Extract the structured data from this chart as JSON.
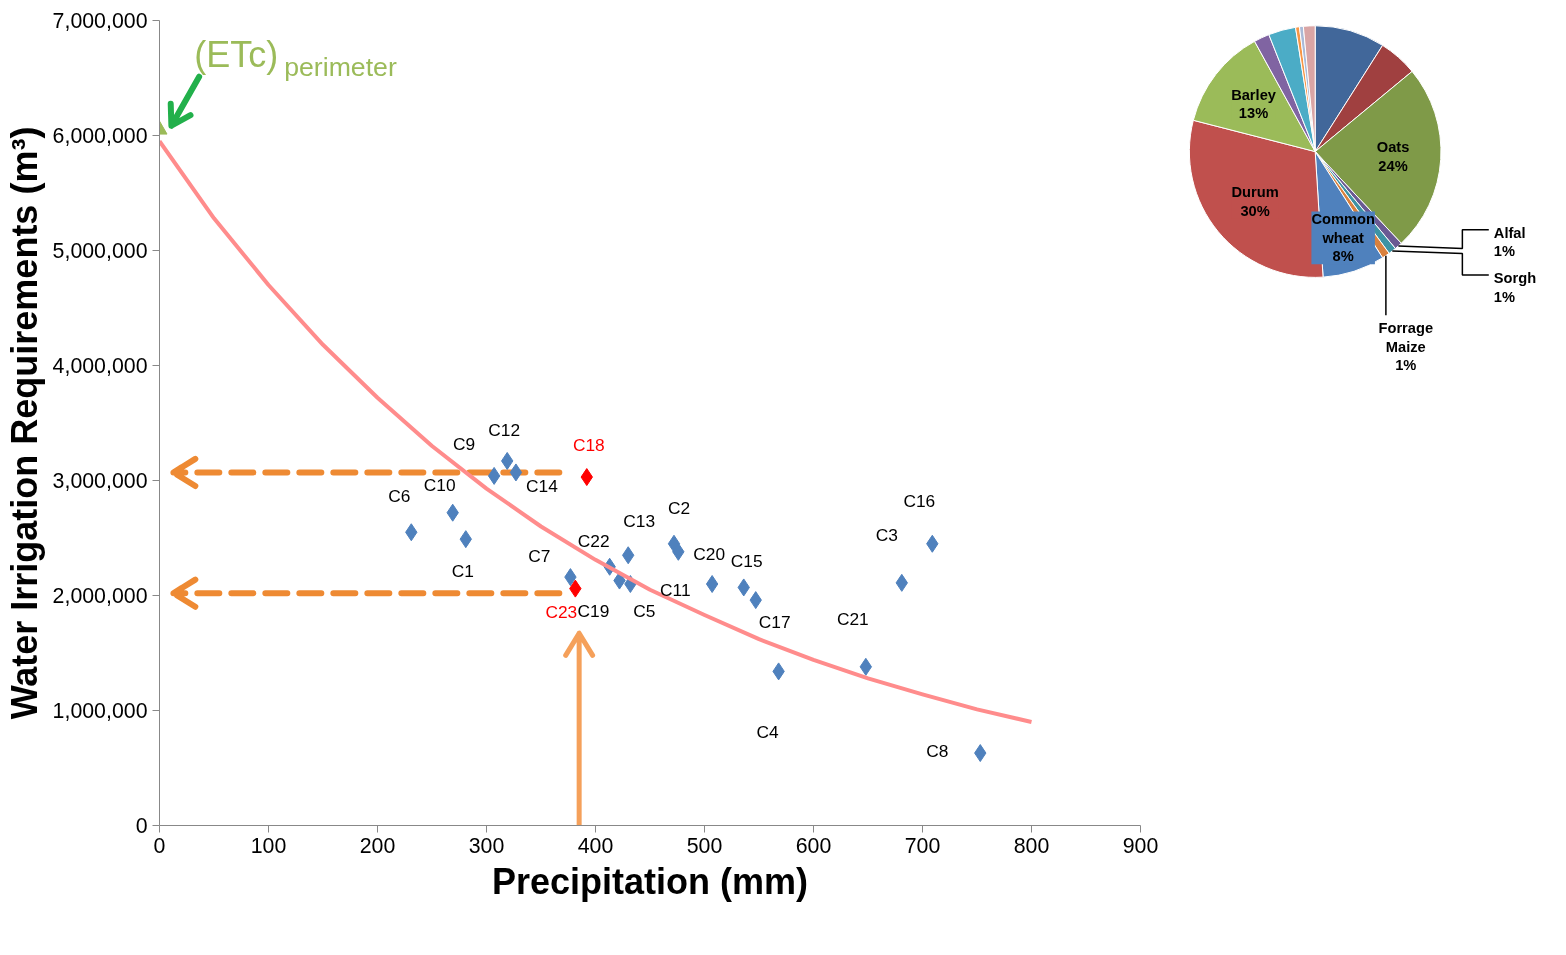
{
  "chart_data": [
    {
      "type": "scatter",
      "xlabel": "Precipitation (mm)",
      "ylabel": "Water Irrigation Requirements (m³)",
      "xlim": [
        0,
        900
      ],
      "xticks": [
        0,
        100,
        200,
        300,
        400,
        500,
        600,
        700,
        800,
        900
      ],
      "ylim": [
        0,
        7000000
      ],
      "yticks": [
        {
          "value": 0,
          "label": "0"
        },
        {
          "value": 1000000,
          "label": "1,000,000"
        },
        {
          "value": 2000000,
          "label": "2,000,000"
        },
        {
          "value": 3000000,
          "label": "3,000,000"
        },
        {
          "value": 4000000,
          "label": "4,000,000"
        },
        {
          "value": 5000000,
          "label": "5,000,000"
        },
        {
          "value": 6000000,
          "label": "6,000,000"
        },
        {
          "value": 7000000,
          "label": "7,000,000"
        }
      ],
      "grid": false,
      "marker": "diamond",
      "ref_lines": [
        {
          "axis": "y",
          "value": 3070000,
          "color": "#ee8a33",
          "line_style": "dashed"
        },
        {
          "axis": "y",
          "value": 2020000,
          "color": "#ee8a33",
          "line_style": "dashed"
        },
        {
          "axis": "x",
          "value": 385,
          "color": "#f5a05a",
          "line_style": "solid"
        }
      ],
      "series": [
        {
          "type": "scatter",
          "color": "#4f81bd",
          "x": [
            231,
            269,
            281,
            307,
            319,
            327,
            377,
            413,
            422,
            430,
            432,
            472,
            476,
            507,
            536,
            547,
            568,
            648,
            681,
            709,
            753
          ],
          "values": [
            2550000,
            2720000,
            2490000,
            3040000,
            3170000,
            3070000,
            2160000,
            2250000,
            2130000,
            2350000,
            2100000,
            2450000,
            2380000,
            2100000,
            2070000,
            1960000,
            1340000,
            1380000,
            2110000,
            2450000,
            630000
          ]
        },
        {
          "type": "scatter",
          "color": "#ff0000",
          "x": [
            392,
            381.5
          ],
          "values": [
            3030000,
            2060000
          ]
        },
        {
          "type": "scatter",
          "marker": "triangle",
          "color": "#9bbb59",
          "x": [
            0
          ],
          "values": [
            6050000
          ]
        },
        {
          "type": "line",
          "color": "#ff8c8c",
          "marker": "none",
          "x": [
            0,
            50,
            100,
            150,
            200,
            250,
            300,
            350,
            400,
            450,
            500,
            550,
            600,
            650,
            700,
            750,
            800
          ],
          "values": [
            5950000,
            5280000,
            4700000,
            4180000,
            3720000,
            3300000,
            2930000,
            2600000,
            2310000,
            2050000,
            1830000,
            1620000,
            1440000,
            1280000,
            1140000,
            1010000,
            900000
          ]
        }
      ],
      "annotations": [
        {
          "text": "C6",
          "x": 231,
          "y": 2550000
        },
        {
          "text": "C10",
          "x": 269,
          "y": 2720000
        },
        {
          "text": "C1",
          "x": 281,
          "y": 2490000
        },
        {
          "text": "C9",
          "x": 307,
          "y": 3040000
        },
        {
          "text": "C12",
          "x": 319,
          "y": 3170000
        },
        {
          "text": "C14",
          "x": 327,
          "y": 3070000
        },
        {
          "text": "C7",
          "x": 377,
          "y": 2160000
        },
        {
          "text": "C22",
          "x": 413,
          "y": 2250000
        },
        {
          "text": "C19",
          "x": 422,
          "y": 2130000
        },
        {
          "text": "C13",
          "x": 430,
          "y": 2350000
        },
        {
          "text": "C5",
          "x": 432,
          "y": 2100000
        },
        {
          "text": "C2",
          "x": 472,
          "y": 2450000
        },
        {
          "text": "C11",
          "x": 476,
          "y": 2380000
        },
        {
          "text": "C20",
          "x": 507,
          "y": 2100000
        },
        {
          "text": "C15",
          "x": 536,
          "y": 2070000
        },
        {
          "text": "C17",
          "x": 547,
          "y": 1960000
        },
        {
          "text": "C4",
          "x": 568,
          "y": 1340000
        },
        {
          "text": "C21",
          "x": 648,
          "y": 1380000
        },
        {
          "text": "C3",
          "x": 681,
          "y": 2110000
        },
        {
          "text": "C16",
          "x": 709,
          "y": 2450000
        },
        {
          "text": "C8",
          "x": 753,
          "y": 630000
        },
        {
          "text": "C18",
          "x": 392,
          "y": 3030000
        },
        {
          "text": "C23",
          "x": 381.5,
          "y": 2060000
        },
        {
          "text": "(ETc)$_{perimeter}$",
          "x": 0,
          "y": 6050000
        }
      ]
    },
    {
      "type": "pie",
      "categories": [
        null,
        null,
        "Oats",
        "Alfal",
        "Sorgh",
        "Forrage Maize",
        "Common wheat",
        "Durum",
        "Barley",
        null,
        null,
        null,
        null,
        null
      ],
      "values": [
        9,
        5,
        24,
        1,
        1,
        1,
        8,
        30,
        13,
        2,
        3.5,
        0.5,
        0.5,
        1.5
      ],
      "value_labels": [
        null,
        null,
        "24%",
        "1%",
        "1%",
        "1%",
        "8%",
        "30%",
        "13%",
        null,
        null,
        null,
        null,
        null
      ],
      "colors": [
        "#41679a",
        "#a04040",
        "#7f9a48",
        "#6a5a93",
        "#3d93a4",
        "#d9813e",
        "#4f81bd",
        "#c0504d",
        "#9bbb59",
        "#8064a2",
        "#4bacc6",
        "#f79646",
        "#aabad7",
        "#d9a5a5"
      ]
    }
  ]
}
